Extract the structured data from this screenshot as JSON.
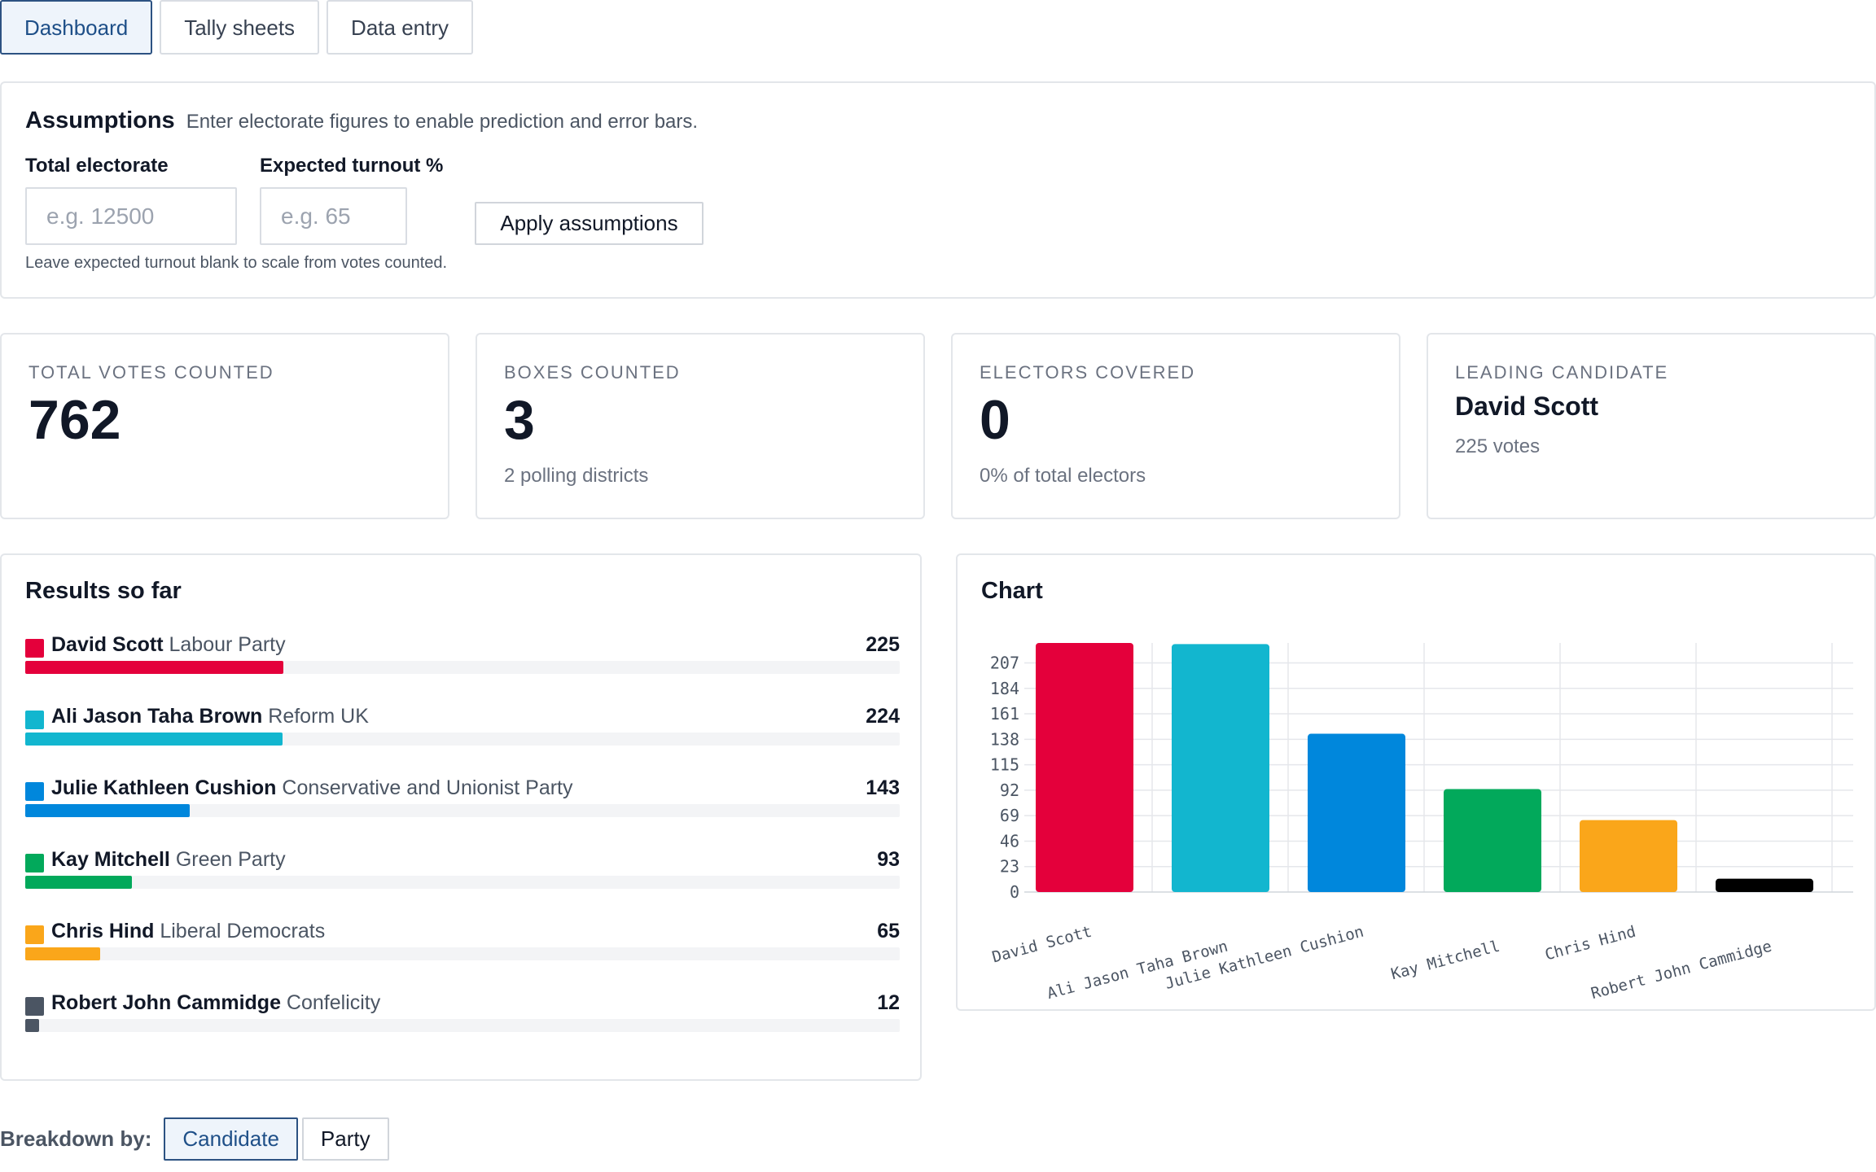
{
  "tabs": [
    {
      "label": "Dashboard",
      "active": true
    },
    {
      "label": "Tally sheets",
      "active": false
    },
    {
      "label": "Data entry",
      "active": false
    }
  ],
  "assumptions": {
    "title": "Assumptions",
    "description": "Enter electorate figures to enable prediction and error bars.",
    "electorate_label": "Total electorate",
    "electorate_placeholder": "e.g. 12500",
    "electorate_value": "",
    "turnout_label": "Expected turnout %",
    "turnout_placeholder": "e.g. 65",
    "turnout_value": "",
    "apply_label": "Apply assumptions",
    "hint": "Leave expected turnout blank to scale from votes counted."
  },
  "stats": {
    "votes": {
      "label": "Total votes counted",
      "value": "762"
    },
    "boxes": {
      "label": "Boxes counted",
      "value": "3",
      "sub": "2 polling districts"
    },
    "electors": {
      "label": "Electors covered",
      "value": "0",
      "sub": "0% of total electors"
    },
    "leader": {
      "label": "Leading candidate",
      "name": "David Scott",
      "votes": "225 votes"
    }
  },
  "results": {
    "title": "Results so far",
    "max": 762,
    "rows": [
      {
        "name": "David Scott",
        "party": "Labour Party",
        "votes": 225,
        "color": "#e4003b"
      },
      {
        "name": "Ali Jason Taha Brown",
        "party": "Reform UK",
        "votes": 224,
        "color": "#12b6cf"
      },
      {
        "name": "Julie Kathleen Cushion",
        "party": "Conservative and Unionist Party",
        "votes": 143,
        "color": "#0087dc"
      },
      {
        "name": "Kay Mitchell",
        "party": "Green Party",
        "votes": 93,
        "color": "#02a95b"
      },
      {
        "name": "Chris Hind",
        "party": "Liberal Democrats",
        "votes": 65,
        "color": "#faa61a"
      },
      {
        "name": "Robert John Cammidge",
        "party": "Confelicity",
        "votes": 12,
        "color": "#4b5563"
      }
    ]
  },
  "chart": {
    "title": "Chart"
  },
  "chart_data": {
    "type": "bar",
    "categories": [
      "David Scott",
      "Ali Jason Taha Brown",
      "Julie Kathleen Cushion",
      "Kay Mitchell",
      "Chris Hind",
      "Robert John Cammidge"
    ],
    "values": [
      225,
      224,
      143,
      93,
      65,
      12
    ],
    "colors": [
      "#e4003b",
      "#12b6cf",
      "#0087dc",
      "#02a95b",
      "#faa61a",
      "#000000"
    ],
    "yticks": [
      0,
      23,
      46,
      69,
      92,
      115,
      138,
      161,
      184,
      207
    ],
    "ylim": [
      0,
      225
    ],
    "grid": true
  },
  "breakdown": {
    "label": "Breakdown by:",
    "options": [
      {
        "label": "Candidate",
        "active": true
      },
      {
        "label": "Party",
        "active": false
      }
    ]
  }
}
